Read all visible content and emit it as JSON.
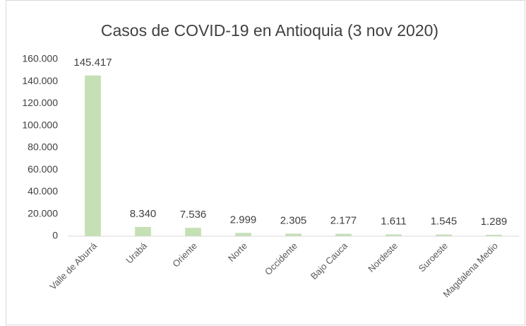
{
  "chart_data": {
    "type": "bar",
    "title": "Casos de COVID-19 en Antioquia (3 nov 2020)",
    "categories": [
      "Valle de Aburrá",
      "Urabá",
      "Oriente",
      "Norte",
      "Occidente",
      "Bajo Cauca",
      "Nordeste",
      "Suroeste",
      "Magdalena Medio"
    ],
    "values": [
      145417,
      8340,
      7536,
      2999,
      2305,
      2177,
      1611,
      1545,
      1289
    ],
    "value_labels": [
      "145.417",
      "8.340",
      "7.536",
      "2.999",
      "2.305",
      "2.177",
      "1.611",
      "1.545",
      "1.289"
    ],
    "color": "#c5e0b4",
    "ylim": [
      0,
      160000
    ],
    "yticks": [
      0,
      {
        "value": 20000,
        "label": "20.000"
      },
      {
        "value": 40000,
        "label": "40.000"
      },
      {
        "value": 60000,
        "label": "60.000"
      },
      {
        "value": 80000,
        "label": "80.000"
      },
      {
        "value": 100000,
        "label": "100.000"
      },
      {
        "value": 120000,
        "label": "120.000"
      },
      {
        "value": 140000,
        "label": "140.000"
      },
      {
        "value": 160000,
        "label": "160.000"
      }
    ],
    "grid": false
  }
}
